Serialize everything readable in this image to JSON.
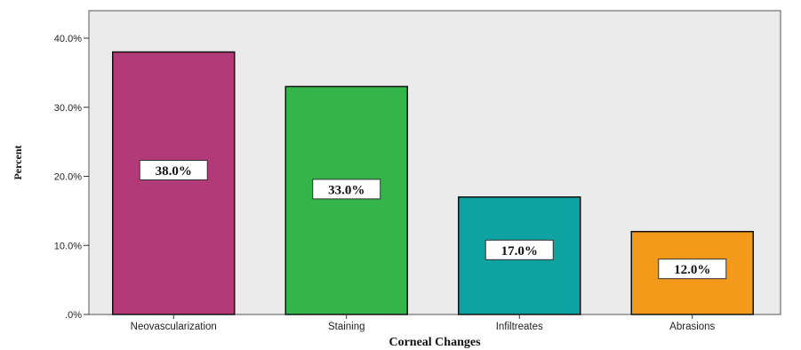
{
  "chart_data": {
    "type": "bar",
    "categories": [
      "Neovascularization",
      "Staining",
      "Infiltreates",
      "Abrasions"
    ],
    "values": [
      38.0,
      33.0,
      17.0,
      12.0
    ],
    "data_labels": [
      "38.0%",
      "33.0%",
      "17.0%",
      "12.0%"
    ],
    "title": "",
    "xlabel": "Corneal Changes",
    "ylabel": "Percent",
    "ylim": [
      0,
      40
    ],
    "yticks": [
      0,
      10,
      20,
      30,
      40
    ],
    "ytick_labels": [
      ".0%",
      "10.0%",
      "20.0%",
      "30.0%",
      "40.0%"
    ],
    "grid": false,
    "legend": "none",
    "colors": [
      "#b23a78",
      "#33b54a",
      "#0fa2a3",
      "#f49a1a"
    ],
    "plot_background": "#ebebeb",
    "bar_edge_color": "#111111"
  }
}
